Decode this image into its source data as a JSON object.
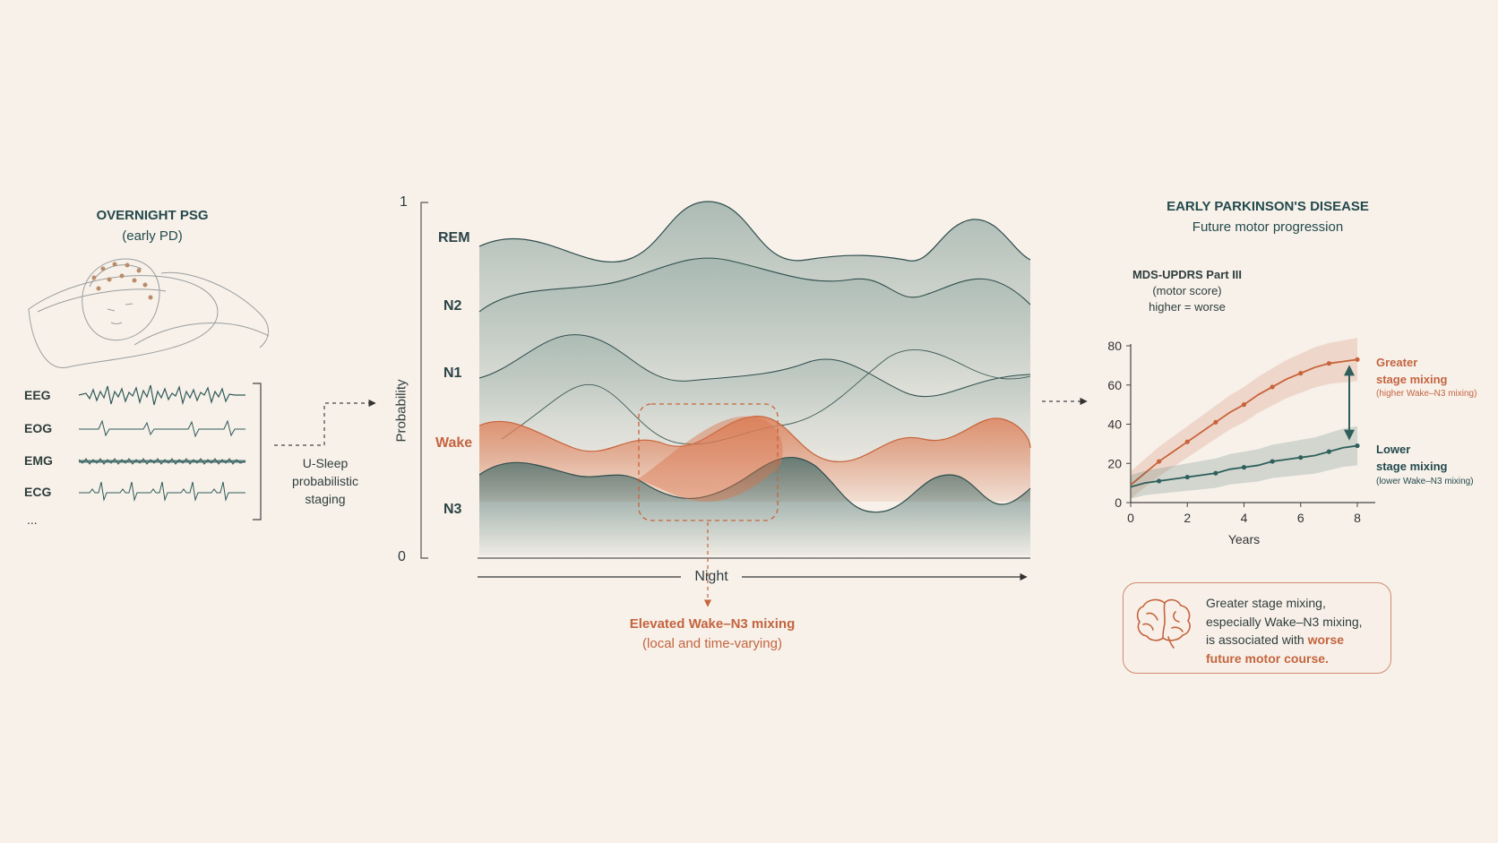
{
  "psg": {
    "title": "OVERNIGHT PSG",
    "subtitle": "(early PD)",
    "signals": [
      "EEG",
      "EOG",
      "EMG",
      "ECG"
    ],
    "more": "..."
  },
  "staging": {
    "label_lines": [
      "U-Sleep",
      "probabilistic",
      "staging"
    ]
  },
  "hypnodensity": {
    "y_axis_label": "Probability",
    "y_top": "1",
    "y_bottom": "0",
    "x_axis_label": "Night",
    "stages": [
      "REM",
      "N2",
      "N1",
      "Wake",
      "N3"
    ],
    "highlight_title": "Elevated Wake–N3 mixing",
    "highlight_sub": "(local and time-varying)"
  },
  "outcome": {
    "title": "EARLY PARKINSON'S DISEASE",
    "subtitle": "Future motor progression",
    "ylabel_lines": [
      "MDS-UPDRS Part III",
      "(motor score)",
      "higher = worse"
    ],
    "greater_lines": [
      "Greater",
      "stage mixing"
    ],
    "greater_sub": "(higher Wake–N3 mixing)",
    "lower_lines": [
      "Lower",
      "stage mixing"
    ],
    "lower_sub": "(lower Wake–N3 mixing)",
    "colors": {
      "greater": "#c8633b",
      "lower": "#2f5f5b"
    }
  },
  "chart_data": {
    "type": "line",
    "xlabel": "Years",
    "ylabel": "MDS-UPDRS Part III",
    "xlim": [
      0,
      8
    ],
    "ylim": [
      0,
      80
    ],
    "xticks": [
      0,
      2,
      4,
      6,
      8
    ],
    "yticks": [
      0,
      20,
      40,
      60,
      80
    ],
    "series": [
      {
        "name": "Greater stage mixing",
        "x": [
          0,
          0.5,
          1,
          1.5,
          2,
          2.5,
          3,
          3.5,
          4,
          4.5,
          5,
          5.5,
          6,
          6.5,
          7,
          7.5,
          8
        ],
        "values": [
          9,
          15,
          21,
          26,
          31,
          36,
          41,
          46,
          50,
          55,
          59,
          63,
          66,
          69,
          71,
          72,
          73
        ]
      },
      {
        "name": "Lower stage mixing",
        "x": [
          0,
          0.5,
          1,
          1.5,
          2,
          2.5,
          3,
          3.5,
          4,
          4.5,
          5,
          5.5,
          6,
          6.5,
          7,
          7.5,
          8
        ],
        "values": [
          8,
          10,
          11,
          12,
          13,
          14,
          15,
          17,
          18,
          19,
          21,
          22,
          23,
          24,
          26,
          28,
          29
        ]
      }
    ]
  },
  "conclusion": {
    "line1": "Greater stage mixing,",
    "line2": "especially Wake–N3 mixing,",
    "line3_plain": "is associated with ",
    "line3_em": "worse",
    "line4_em": "future motor course."
  }
}
